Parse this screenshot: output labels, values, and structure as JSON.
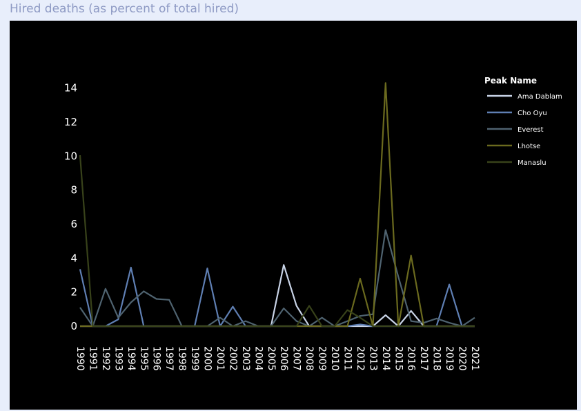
{
  "page": {
    "title": "Hired deaths (as percent of total hired)"
  },
  "chart_data": {
    "type": "line",
    "title": "",
    "xlabel": "",
    "ylabel": "",
    "x": [
      1990,
      1991,
      1992,
      1993,
      1994,
      1995,
      1996,
      1997,
      1998,
      1999,
      2000,
      2001,
      2002,
      2003,
      2004,
      2005,
      2006,
      2007,
      2008,
      2009,
      2010,
      2011,
      2012,
      2013,
      2014,
      2015,
      2016,
      2017,
      2018,
      2019,
      2020,
      2021
    ],
    "ylim": [
      0,
      15
    ],
    "yticks": [
      0,
      2,
      4,
      6,
      8,
      10,
      12,
      14
    ],
    "grid": false,
    "legend": {
      "title": "Peak Name",
      "placement": "right"
    },
    "series": [
      {
        "name": "Ama Dablam",
        "color": "#c8d3e6",
        "values": [
          0,
          0,
          0,
          0,
          0,
          0,
          0,
          0,
          0,
          0,
          0,
          0,
          0,
          0,
          0,
          0,
          3.6,
          1.2,
          0,
          0,
          0,
          0,
          0,
          0,
          0.65,
          0,
          0.9,
          0,
          0,
          0,
          0,
          0
        ]
      },
      {
        "name": "Cho Oyu",
        "color": "#5f7fb3",
        "values": [
          3.35,
          0,
          0,
          0.4,
          3.45,
          0,
          0,
          0,
          0,
          0,
          3.4,
          0,
          1.15,
          0,
          0,
          0,
          0,
          0,
          0,
          0,
          0,
          0,
          0.1,
          0,
          0,
          0,
          0,
          0,
          0,
          2.45,
          0,
          0
        ]
      },
      {
        "name": "Everest",
        "color": "#4f6370",
        "values": [
          1.1,
          0,
          2.2,
          0.5,
          1.4,
          2.05,
          1.6,
          1.55,
          0,
          0,
          0,
          0.5,
          0,
          0.3,
          0,
          0,
          1.05,
          0.3,
          0,
          0.5,
          0,
          0.3,
          0.6,
          0.7,
          5.65,
          2.9,
          0.3,
          0.2,
          0.45,
          0.2,
          0,
          0.5
        ]
      },
      {
        "name": "Lhotse",
        "color": "#6b6a1e",
        "values": [
          0,
          0,
          0,
          0,
          0,
          0,
          0,
          0,
          0,
          0,
          0,
          0,
          0,
          0,
          0,
          0,
          0,
          0,
          0,
          0,
          0,
          0,
          2.8,
          0,
          14.3,
          0,
          4.15,
          0,
          0,
          0,
          0,
          0
        ]
      },
      {
        "name": "Manaslu",
        "color": "#38421a",
        "values": [
          10.05,
          0,
          0,
          0,
          0,
          0,
          0,
          0,
          0,
          0,
          0,
          0,
          0,
          0,
          0,
          0,
          0,
          0,
          1.2,
          0,
          0,
          0.95,
          0.5,
          0,
          0,
          0,
          0,
          0,
          0,
          0,
          0,
          0
        ]
      }
    ]
  }
}
